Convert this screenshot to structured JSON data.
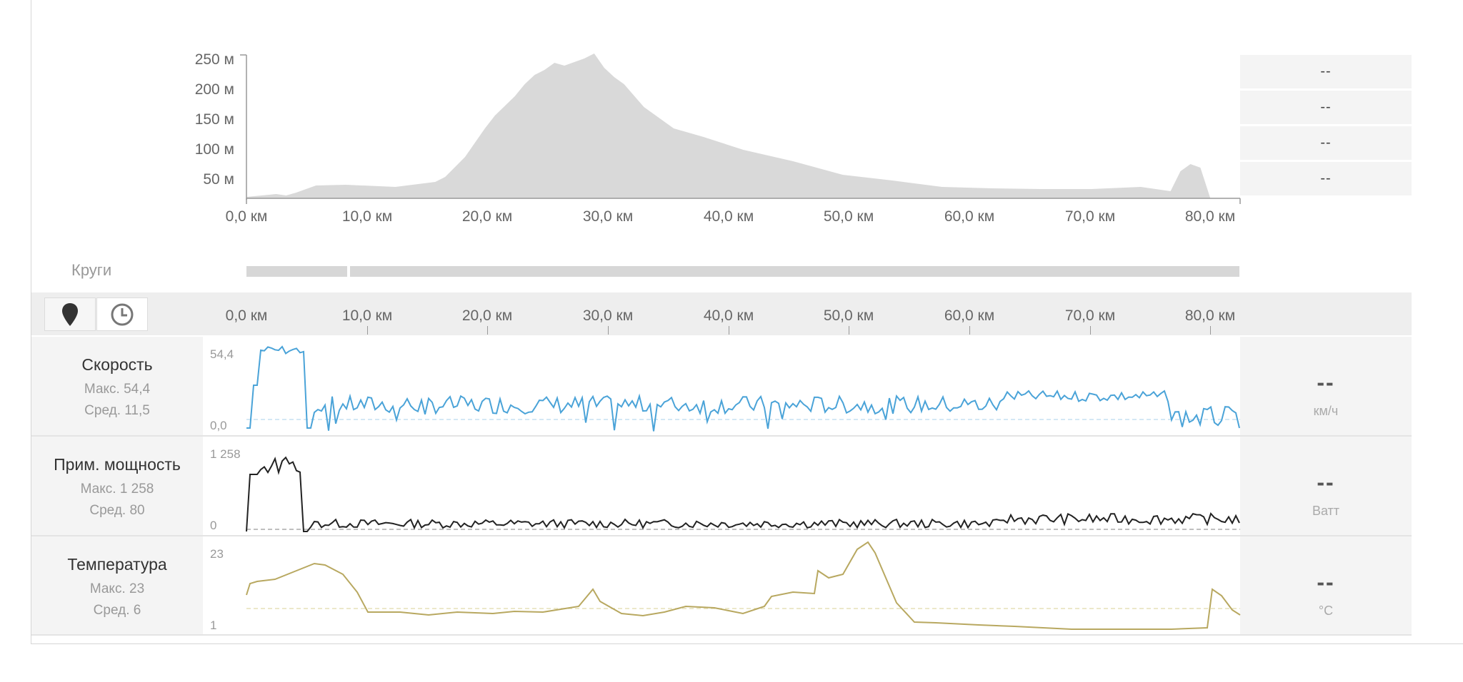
{
  "elevation": {
    "y_ticks": [
      "250 м",
      "200 м",
      "150 м",
      "100 м",
      "50 м"
    ],
    "x_ticks": [
      "0,0 км",
      "10,0 км",
      "20,0 км",
      "30,0 км",
      "40,0 км",
      "50,0 км",
      "60,0 км",
      "70,0 км",
      "80,0 км"
    ],
    "color": "#d9d9d9"
  },
  "side_values": [
    "--",
    "--",
    "--",
    "--"
  ],
  "laps": {
    "label": "Круги"
  },
  "distance_axis": {
    "ticks": [
      "0,0 км",
      "10,0 км",
      "20,0 км",
      "30,0 км",
      "40,0 км",
      "50,0 км",
      "60,0 км",
      "70,0 км",
      "80,0 км"
    ],
    "buttons": {
      "distance": "location-pin-icon",
      "time": "clock-icon"
    }
  },
  "rows": [
    {
      "name": "Скорость",
      "max": "Макс. 54,4",
      "avg": "Сред. 11,5",
      "y_max": "54,4",
      "y_min": "0,0",
      "value": "--",
      "unit": "км/ч",
      "color": "#4aa3d8"
    },
    {
      "name": "Прим. мощность",
      "max": "Макс. 1 258",
      "avg": "Сред. 80",
      "y_max": "1 258",
      "y_min": "0",
      "value": "--",
      "unit": "Ватт",
      "color": "#222222"
    },
    {
      "name": "Температура",
      "max": "Макс. 23",
      "avg": "Сред. 6",
      "y_max": "23",
      "y_min": "1",
      "value": "--",
      "unit": "°C",
      "color": "#b8a860"
    }
  ]
}
